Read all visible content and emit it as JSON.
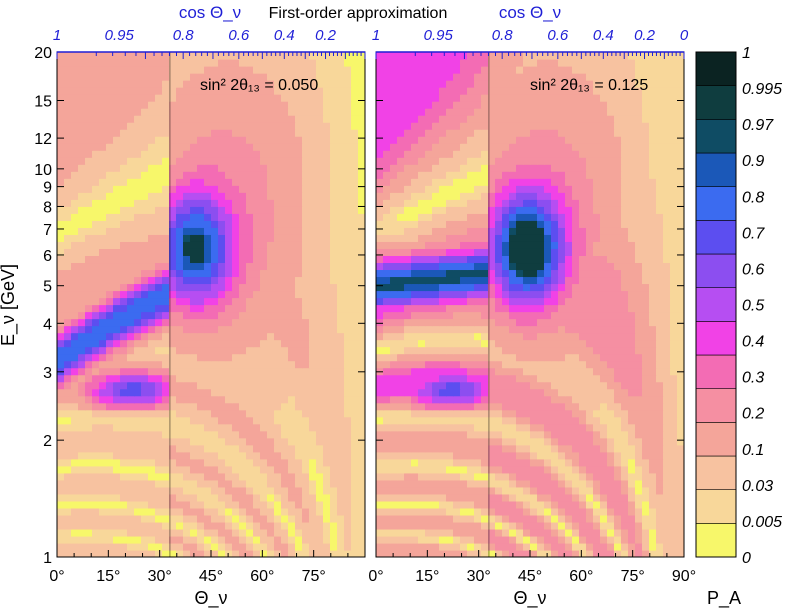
{
  "chart_data": {
    "type": "heatmap",
    "title": "First-order approximation",
    "top_axis_label": "cos Θ_ν",
    "xlabel": "Θ_ν",
    "ylabel": "E_ν [GeV]",
    "colorbar_label": "P_A",
    "y_scale": "log",
    "ylim": [
      1,
      20
    ],
    "y_ticks": [
      1,
      2,
      3,
      4,
      5,
      6,
      7,
      8,
      9,
      10,
      12,
      15,
      20
    ],
    "y_tick_labels": [
      "1",
      "2",
      "3",
      "4",
      "5",
      "6",
      "7",
      "8",
      "9",
      "10",
      "12",
      "15",
      "20"
    ],
    "panels": [
      {
        "annotation": "sin² 2θ₁₃ = 0.050",
        "sin2_2theta13": 0.05,
        "x_ticks": [
          0,
          15,
          30,
          45,
          60,
          75
        ],
        "x_tick_labels": [
          "0°",
          "15°",
          "30°",
          "45°",
          "60°",
          "75°"
        ],
        "top_ticks": [
          "1",
          "0.95",
          "0.8",
          "0.6",
          "0.4",
          "0.2"
        ],
        "core_boundary_deg": 33
      },
      {
        "annotation": "sin² 2θ₁₃ = 0.125",
        "sin2_2theta13": 0.125,
        "x_ticks": [
          0,
          15,
          30,
          45,
          60,
          75,
          90
        ],
        "x_tick_labels": [
          "0°",
          "15°",
          "30°",
          "45°",
          "60°",
          "75°",
          "90°"
        ],
        "top_ticks": [
          "1",
          "0.95",
          "0.8",
          "0.6",
          "0.4",
          "0.2",
          "0"
        ],
        "core_boundary_deg": 33
      }
    ],
    "colorbar": {
      "levels": [
        0,
        0.005,
        0.03,
        0.1,
        0.2,
        0.3,
        0.4,
        0.5,
        0.6,
        0.7,
        0.8,
        0.9,
        0.97,
        0.995,
        1
      ],
      "labels": [
        "0",
        "0.005",
        "0.03",
        "0.1",
        "0.2",
        "0.3",
        "0.4",
        "0.5",
        "0.6",
        "0.7",
        "0.8",
        "0.9",
        "0.97",
        "0.995",
        "1"
      ],
      "colors": [
        "#f7f76a",
        "#f8d79a",
        "#f7c2a0",
        "#f4a59a",
        "#f58fa2",
        "#f36cb4",
        "#f142e6",
        "#b64ef2",
        "#8c4ef0",
        "#5c4ef0",
        "#3b6bf0",
        "#1b58b8",
        "#0f4c64",
        "#0f3d3f",
        "#0b2322"
      ]
    }
  }
}
